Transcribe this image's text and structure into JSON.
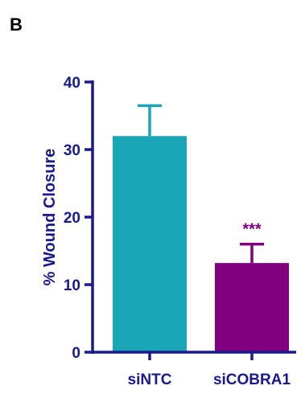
{
  "panel_label": "B",
  "chart_data": {
    "type": "bar",
    "categories": [
      "siNTC",
      "siCOBRA1"
    ],
    "values": [
      32,
      13.2
    ],
    "errors": [
      4.5,
      2.8
    ],
    "colors": [
      "#1aa6b7",
      "#800080"
    ],
    "significance": [
      "",
      "***"
    ],
    "title": "",
    "xlabel": "",
    "ylabel": "% Wound Closure",
    "ylim": [
      0,
      40
    ],
    "yticks": [
      0,
      10,
      20,
      30,
      40
    ],
    "grid": false,
    "axis_color": "#1a1a8c"
  }
}
